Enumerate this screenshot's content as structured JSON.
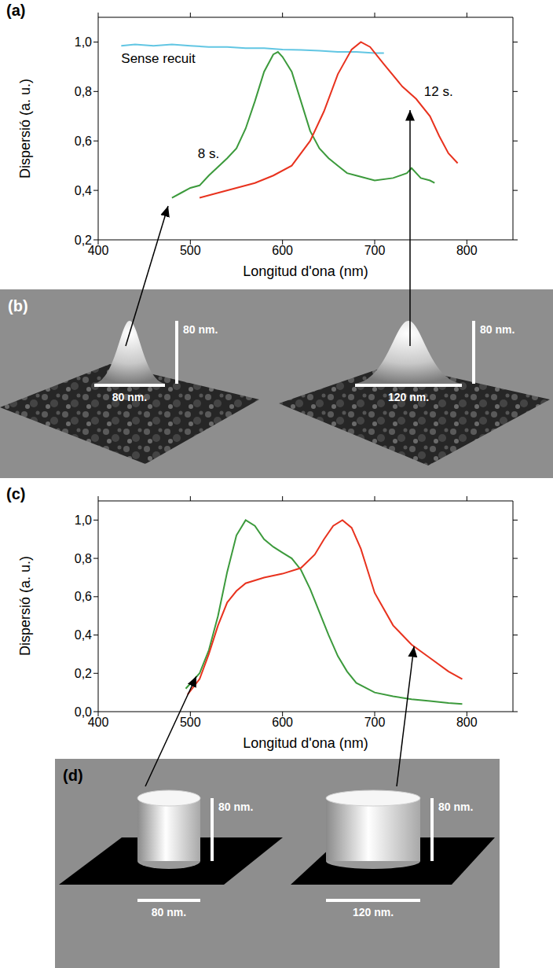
{
  "chart_data": [
    {
      "type": "line",
      "title": "(a)",
      "x_label": "Longitud d'ona (nm)",
      "y_label": "Dispersió (a. u.)",
      "xlim": [
        400,
        850
      ],
      "xticks": [
        400,
        500,
        600,
        700,
        800
      ],
      "ylim": [
        0.2,
        1.1
      ],
      "yticks": [
        {
          "value": 0.2,
          "label": "0,2"
        },
        {
          "value": 0.4,
          "label": "0,4"
        },
        {
          "value": 0.6,
          "label": "0,6"
        },
        {
          "value": 0.8,
          "label": "0,8"
        },
        {
          "value": 1.0,
          "label": "1,0"
        }
      ],
      "grid": false,
      "series": [
        {
          "name": "Sense recuit",
          "color": "#62c6e3",
          "x": [
            425,
            440,
            460,
            480,
            500,
            520,
            540,
            560,
            580,
            600,
            620,
            640,
            660,
            680,
            700,
            710
          ],
          "values": [
            0.985,
            0.99,
            0.985,
            0.99,
            0.985,
            0.98,
            0.98,
            0.975,
            0.975,
            0.97,
            0.968,
            0.965,
            0.96,
            0.96,
            0.955,
            0.955
          ]
        },
        {
          "name": "8 s.",
          "color": "#3c9a3c",
          "x": [
            480,
            490,
            500,
            510,
            520,
            540,
            550,
            560,
            570,
            580,
            590,
            595,
            600,
            610,
            620,
            630,
            640,
            650,
            660,
            670,
            680,
            700,
            720,
            735,
            740,
            750,
            760,
            765
          ],
          "values": [
            0.37,
            0.39,
            0.41,
            0.42,
            0.46,
            0.53,
            0.57,
            0.65,
            0.76,
            0.88,
            0.95,
            0.96,
            0.94,
            0.88,
            0.76,
            0.64,
            0.57,
            0.53,
            0.5,
            0.47,
            0.46,
            0.44,
            0.45,
            0.47,
            0.49,
            0.45,
            0.44,
            0.43
          ]
        },
        {
          "name": "12 s.",
          "color": "#e8321e",
          "x": [
            510,
            530,
            550,
            570,
            590,
            610,
            630,
            645,
            660,
            675,
            685,
            695,
            710,
            730,
            745,
            760,
            770,
            780,
            790
          ],
          "values": [
            0.37,
            0.39,
            0.41,
            0.43,
            0.46,
            0.5,
            0.6,
            0.72,
            0.87,
            0.97,
            1.0,
            0.98,
            0.91,
            0.82,
            0.77,
            0.7,
            0.62,
            0.55,
            0.51
          ]
        }
      ]
    },
    {
      "type": "line",
      "title": "(c)",
      "x_label": "Longitud d'ona (nm)",
      "y_label": "Dispersió (a. u.)",
      "xlim": [
        400,
        850
      ],
      "xticks": [
        400,
        500,
        600,
        700,
        800
      ],
      "ylim": [
        0,
        1.1
      ],
      "yticks": [
        {
          "value": 0,
          "label": "0,0"
        },
        {
          "value": 0.2,
          "label": "0,2"
        },
        {
          "value": 0.4,
          "label": "0,4"
        },
        {
          "value": 0.6,
          "label": "0,6"
        },
        {
          "value": 0.8,
          "label": "0,8"
        },
        {
          "value": 1.0,
          "label": "1,0"
        }
      ],
      "grid": false,
      "series": [
        {
          "color": "#3c9a3c",
          "x": [
            495,
            510,
            520,
            530,
            540,
            550,
            560,
            570,
            580,
            590,
            600,
            610,
            620,
            630,
            640,
            650,
            660,
            670,
            680,
            700,
            720,
            740,
            760,
            780,
            795
          ],
          "values": [
            0.12,
            0.2,
            0.32,
            0.5,
            0.73,
            0.92,
            1.0,
            0.97,
            0.9,
            0.86,
            0.83,
            0.8,
            0.74,
            0.64,
            0.52,
            0.4,
            0.29,
            0.21,
            0.15,
            0.1,
            0.08,
            0.065,
            0.055,
            0.045,
            0.04
          ]
        },
        {
          "color": "#e8321e",
          "x": [
            497,
            510,
            520,
            530,
            540,
            550,
            560,
            580,
            600,
            620,
            635,
            645,
            655,
            665,
            675,
            685,
            700,
            720,
            740,
            760,
            780,
            795
          ],
          "values": [
            0.09,
            0.17,
            0.3,
            0.45,
            0.57,
            0.63,
            0.67,
            0.7,
            0.72,
            0.75,
            0.82,
            0.9,
            0.97,
            1.0,
            0.96,
            0.85,
            0.62,
            0.45,
            0.35,
            0.28,
            0.21,
            0.17
          ]
        }
      ]
    }
  ],
  "images": [
    {
      "label": "(b)",
      "objects": [
        {
          "shape": "cone",
          "width_label": "80 nm.",
          "height_label": "80 nm."
        },
        {
          "shape": "cone",
          "width_label": "120 nm.",
          "height_label": "80 nm."
        }
      ]
    },
    {
      "label": "(d)",
      "objects": [
        {
          "shape": "cylinder",
          "width_label": "80 nm.",
          "height_label": "80 nm."
        },
        {
          "shape": "cylinder",
          "width_label": "120 nm.",
          "height_label": "80 nm."
        }
      ]
    }
  ]
}
